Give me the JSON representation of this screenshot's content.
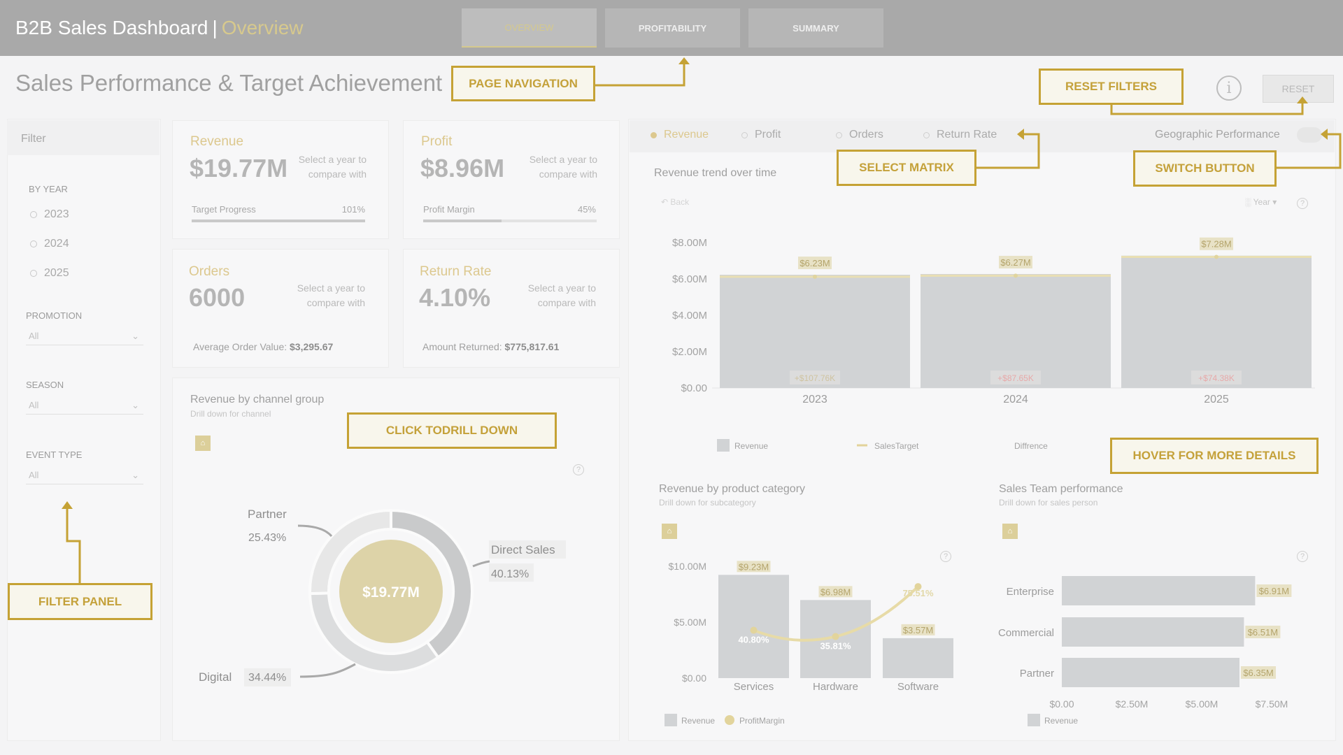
{
  "header": {
    "title": "B2B Sales Dashboard",
    "separator": "|",
    "subtitle": "Overview",
    "tabs": [
      {
        "label": "OVERVIEW",
        "active": true
      },
      {
        "label": "PROFITABILITY",
        "active": false
      },
      {
        "label": "SUMMARY",
        "active": false
      }
    ]
  },
  "page_title": "Sales Performance & Target Achievement",
  "info_icon": "i",
  "reset_label": "RESET",
  "filters": {
    "header": "Filter",
    "by_year": {
      "label": "BY YEAR",
      "options": [
        "2023",
        "2024",
        "2025"
      ]
    },
    "promotion": {
      "label": "PROMOTION",
      "value": "All"
    },
    "season": {
      "label": "SEASON",
      "value": "All"
    },
    "event_type": {
      "label": "EVENT TYPE",
      "value": "All"
    }
  },
  "kpis": {
    "revenue": {
      "label": "Revenue",
      "value": "$19.77M",
      "compare": "Select a year to compare with",
      "progress_label": "Target Progress",
      "progress_value": "101%",
      "progress_fraction": 1.0
    },
    "profit": {
      "label": "Profit",
      "value": "$8.96M",
      "compare": "Select a year to compare with",
      "progress_label": "Profit Margin",
      "progress_value": "45%",
      "progress_fraction": 0.45
    },
    "orders": {
      "label": "Orders",
      "value": "6000",
      "compare": "Select a year to compare with",
      "foot_label": "Average Order Value:",
      "foot_value": "$3,295.67"
    },
    "return_rate": {
      "label": "Return Rate",
      "value": "4.10%",
      "compare": "Select a year to compare with",
      "foot_label": "Amount Returned:",
      "foot_value": "$775,817.61"
    }
  },
  "matrix_options": [
    "Revenue",
    "Profit",
    "Orders",
    "Return Rate"
  ],
  "geo_label": "Geographic Performance",
  "trend": {
    "title": "Revenue trend over time",
    "back_label": "Back",
    "year_label": "Year",
    "y_ticks": [
      "$8.00M",
      "$6.00M",
      "$4.00M",
      "$2.00M",
      "$0.00"
    ],
    "legend": [
      "Revenue",
      "SalesTarget",
      "Diffrence"
    ]
  },
  "channel": {
    "title": "Revenue by channel group",
    "subtitle": "Drill down for channel",
    "center": "$19.77M",
    "labels": [
      {
        "name": "Partner",
        "pct": "25.43%"
      },
      {
        "name": "Direct Sales",
        "pct": "40.13%"
      },
      {
        "name": "Digital",
        "pct": "34.44%"
      }
    ]
  },
  "category": {
    "title": "Revenue by product category",
    "subtitle": "Drill down for subcategory",
    "y_ticks": [
      "$10.00M",
      "$5.00M",
      "$0.00"
    ],
    "legend": [
      "Revenue",
      "ProfitMargin"
    ]
  },
  "team": {
    "title": "Sales Team performance",
    "subtitle": "Drill down for sales person",
    "x_ticks": [
      "$0.00",
      "$2.50M",
      "$5.00M",
      "$7.50M"
    ],
    "legend": [
      "Revenue"
    ]
  },
  "chart_data": [
    {
      "type": "bar",
      "title": "Revenue trend over time",
      "categories": [
        "2023",
        "2024",
        "2025"
      ],
      "series": [
        {
          "name": "Revenue",
          "values": [
            6.23,
            6.27,
            7.28
          ],
          "labels": [
            "$6.23M",
            "$6.27M",
            "$7.28M"
          ]
        },
        {
          "name": "SalesTarget",
          "values": [
            6.12,
            6.18,
            7.21
          ]
        },
        {
          "name": "Diffrence",
          "labels": [
            "+$107.76K",
            "+$87.65K",
            "+$74.38K"
          ]
        }
      ],
      "ylim": [
        0,
        8
      ]
    },
    {
      "type": "pie",
      "title": "Revenue by channel group",
      "categories": [
        "Partner",
        "Direct Sales",
        "Digital"
      ],
      "values": [
        25.43,
        40.13,
        34.44
      ]
    },
    {
      "type": "bar",
      "title": "Revenue by product category",
      "categories": [
        "Services",
        "Hardware",
        "Software"
      ],
      "series": [
        {
          "name": "Revenue",
          "values": [
            9.23,
            6.98,
            3.57
          ],
          "labels": [
            "$9.23M",
            "$6.98M",
            "$3.57M"
          ]
        },
        {
          "name": "ProfitMargin",
          "values": [
            40.8,
            35.81,
            75.51
          ],
          "labels": [
            "40.80%",
            "35.81%",
            "75.51%"
          ]
        }
      ],
      "ylim": [
        0,
        10
      ]
    },
    {
      "type": "bar",
      "title": "Sales Team performance",
      "categories": [
        "Enterprise",
        "Commercial",
        "Partner"
      ],
      "series": [
        {
          "name": "Revenue",
          "values": [
            6.91,
            6.51,
            6.35
          ],
          "labels": [
            "$6.91M",
            "$6.51M",
            "$6.35M"
          ]
        }
      ],
      "xlim": [
        0,
        7.5
      ]
    }
  ],
  "annotations": {
    "page_navigation": "PAGE NAVIGATION",
    "reset_filters": "RESET FILTERS",
    "select_matrix": "SELECT MATRIX",
    "switch_button": "SWITCH BUTTON",
    "click_drill": "CLICK TODRILL DOWN",
    "hover": "HOVER FOR MORE DETAILS",
    "filter_panel": "FILTER PANEL"
  },
  "colors": {
    "accent": "#c5a235",
    "header": "#a9a9a9",
    "bar": "#d1d3d5",
    "gold": "#dcc88e"
  }
}
